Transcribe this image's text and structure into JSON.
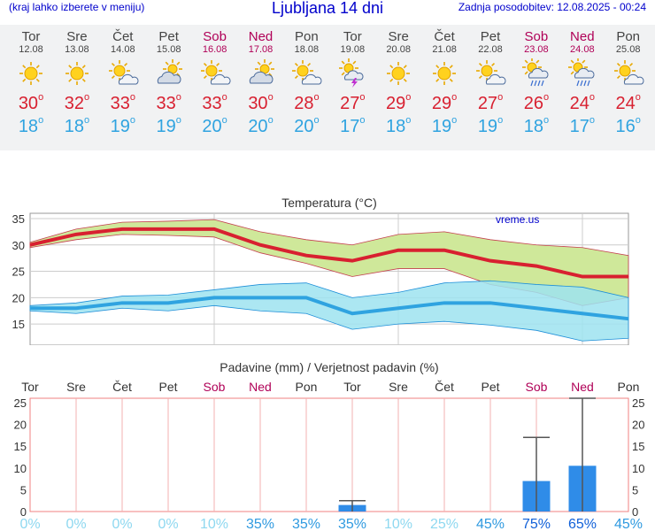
{
  "header": {
    "left_note": "(kraj lahko izberete v meniju)",
    "title": "Ljubljana 14 dni",
    "updated": "Zadnja posodobitev: 12.08.2025 - 00:24"
  },
  "days": [
    {
      "name": "Tor",
      "date": "12.08",
      "weekend": false,
      "icon": "sunny-icon",
      "hi": "30",
      "lo": "18"
    },
    {
      "name": "Sre",
      "date": "13.08",
      "weekend": false,
      "icon": "sunny-icon",
      "hi": "32",
      "lo": "18"
    },
    {
      "name": "Čet",
      "date": "14.08",
      "weekend": false,
      "icon": "sun-cloud-icon",
      "hi": "33",
      "lo": "19"
    },
    {
      "name": "Pet",
      "date": "15.08",
      "weekend": false,
      "icon": "cloudy-icon",
      "hi": "33",
      "lo": "19"
    },
    {
      "name": "Sob",
      "date": "16.08",
      "weekend": true,
      "icon": "sun-cloud-icon",
      "hi": "33",
      "lo": "20"
    },
    {
      "name": "Ned",
      "date": "17.08",
      "weekend": true,
      "icon": "cloudy-icon",
      "hi": "30",
      "lo": "20"
    },
    {
      "name": "Pon",
      "date": "18.08",
      "weekend": false,
      "icon": "sun-cloud-icon",
      "hi": "28",
      "lo": "20"
    },
    {
      "name": "Tor",
      "date": "19.08",
      "weekend": false,
      "icon": "thunderstorm-icon",
      "hi": "27",
      "lo": "17"
    },
    {
      "name": "Sre",
      "date": "20.08",
      "weekend": false,
      "icon": "sunny-icon",
      "hi": "29",
      "lo": "18"
    },
    {
      "name": "Čet",
      "date": "21.08",
      "weekend": false,
      "icon": "sunny-icon",
      "hi": "29",
      "lo": "19"
    },
    {
      "name": "Pet",
      "date": "22.08",
      "weekend": false,
      "icon": "sun-cloud-icon",
      "hi": "27",
      "lo": "19"
    },
    {
      "name": "Sob",
      "date": "23.08",
      "weekend": true,
      "icon": "rain-icon",
      "hi": "26",
      "lo": "18"
    },
    {
      "name": "Ned",
      "date": "24.08",
      "weekend": true,
      "icon": "rain-icon",
      "hi": "24",
      "lo": "17"
    },
    {
      "name": "Pon",
      "date": "25.08",
      "weekend": false,
      "icon": "sun-cloud-icon",
      "hi": "24",
      "lo": "16"
    }
  ],
  "colors": {
    "high": "#d82030",
    "low": "#2fa3e0",
    "weekend": "#b00057",
    "high_band": "#cfe89a",
    "low_band": "#9ee3f0",
    "bar": "#2f8ce8"
  },
  "chart_data": [
    {
      "type": "line",
      "title": "Temperatura (°C)",
      "watermark": "vreme.us",
      "x": [
        "12.08",
        "13.08",
        "14.08",
        "15.08",
        "16.08",
        "17.08",
        "18.08",
        "19.08",
        "20.08",
        "21.08",
        "22.08",
        "23.08",
        "24.08",
        "25.08"
      ],
      "ylim": [
        11,
        36
      ],
      "yticks": [
        15,
        20,
        25,
        30,
        35
      ],
      "grid": true,
      "series": [
        {
          "values": [
            30,
            32,
            33,
            33,
            33,
            30,
            28,
            27,
            29,
            29,
            27,
            26,
            24,
            24
          ],
          "band_low": [
            29.5,
            31,
            32,
            31.8,
            31.5,
            28.5,
            26.5,
            24,
            25.5,
            25.5,
            22.5,
            21,
            18.5,
            20
          ],
          "band_high": [
            30.5,
            33,
            34.3,
            34.5,
            34.8,
            32.5,
            31,
            30,
            32,
            32.5,
            31,
            30,
            29.5,
            28
          ]
        },
        {
          "values": [
            18,
            18,
            19,
            19,
            20,
            20,
            20,
            17,
            18,
            19,
            19,
            18,
            17,
            16
          ],
          "band_low": [
            17.5,
            17,
            18,
            17.5,
            18.5,
            17.5,
            17,
            14,
            15,
            15.5,
            14.8,
            13.8,
            11.8,
            12.3
          ],
          "band_high": [
            18.5,
            19,
            20.3,
            20.5,
            21.5,
            22.5,
            22.8,
            20,
            21,
            22.8,
            23.2,
            22.5,
            22,
            20
          ]
        }
      ]
    },
    {
      "type": "bar",
      "title": "Padavine (mm) / Verjetnost padavin (%)",
      "categories": [
        "Tor",
        "Sre",
        "Čet",
        "Pet",
        "Sob",
        "Ned",
        "Pon",
        "Tor",
        "Sre",
        "Čet",
        "Pet",
        "Sob",
        "Ned",
        "Pon"
      ],
      "ylim": [
        0,
        26
      ],
      "yticks": [
        0,
        5,
        10,
        15,
        20,
        25
      ],
      "values": [
        0,
        0,
        0,
        0,
        0,
        0,
        0,
        1.5,
        0,
        0,
        0,
        7,
        10.5,
        0
      ],
      "range_max": [
        0,
        0,
        0,
        0,
        0,
        0,
        0,
        2.5,
        0,
        0,
        0,
        17,
        26,
        0
      ],
      "probability": [
        "0%",
        "0%",
        "0%",
        "0%",
        "10%",
        "35%",
        "35%",
        "35%",
        "10%",
        "25%",
        "45%",
        "75%",
        "65%",
        "45%"
      ]
    }
  ]
}
